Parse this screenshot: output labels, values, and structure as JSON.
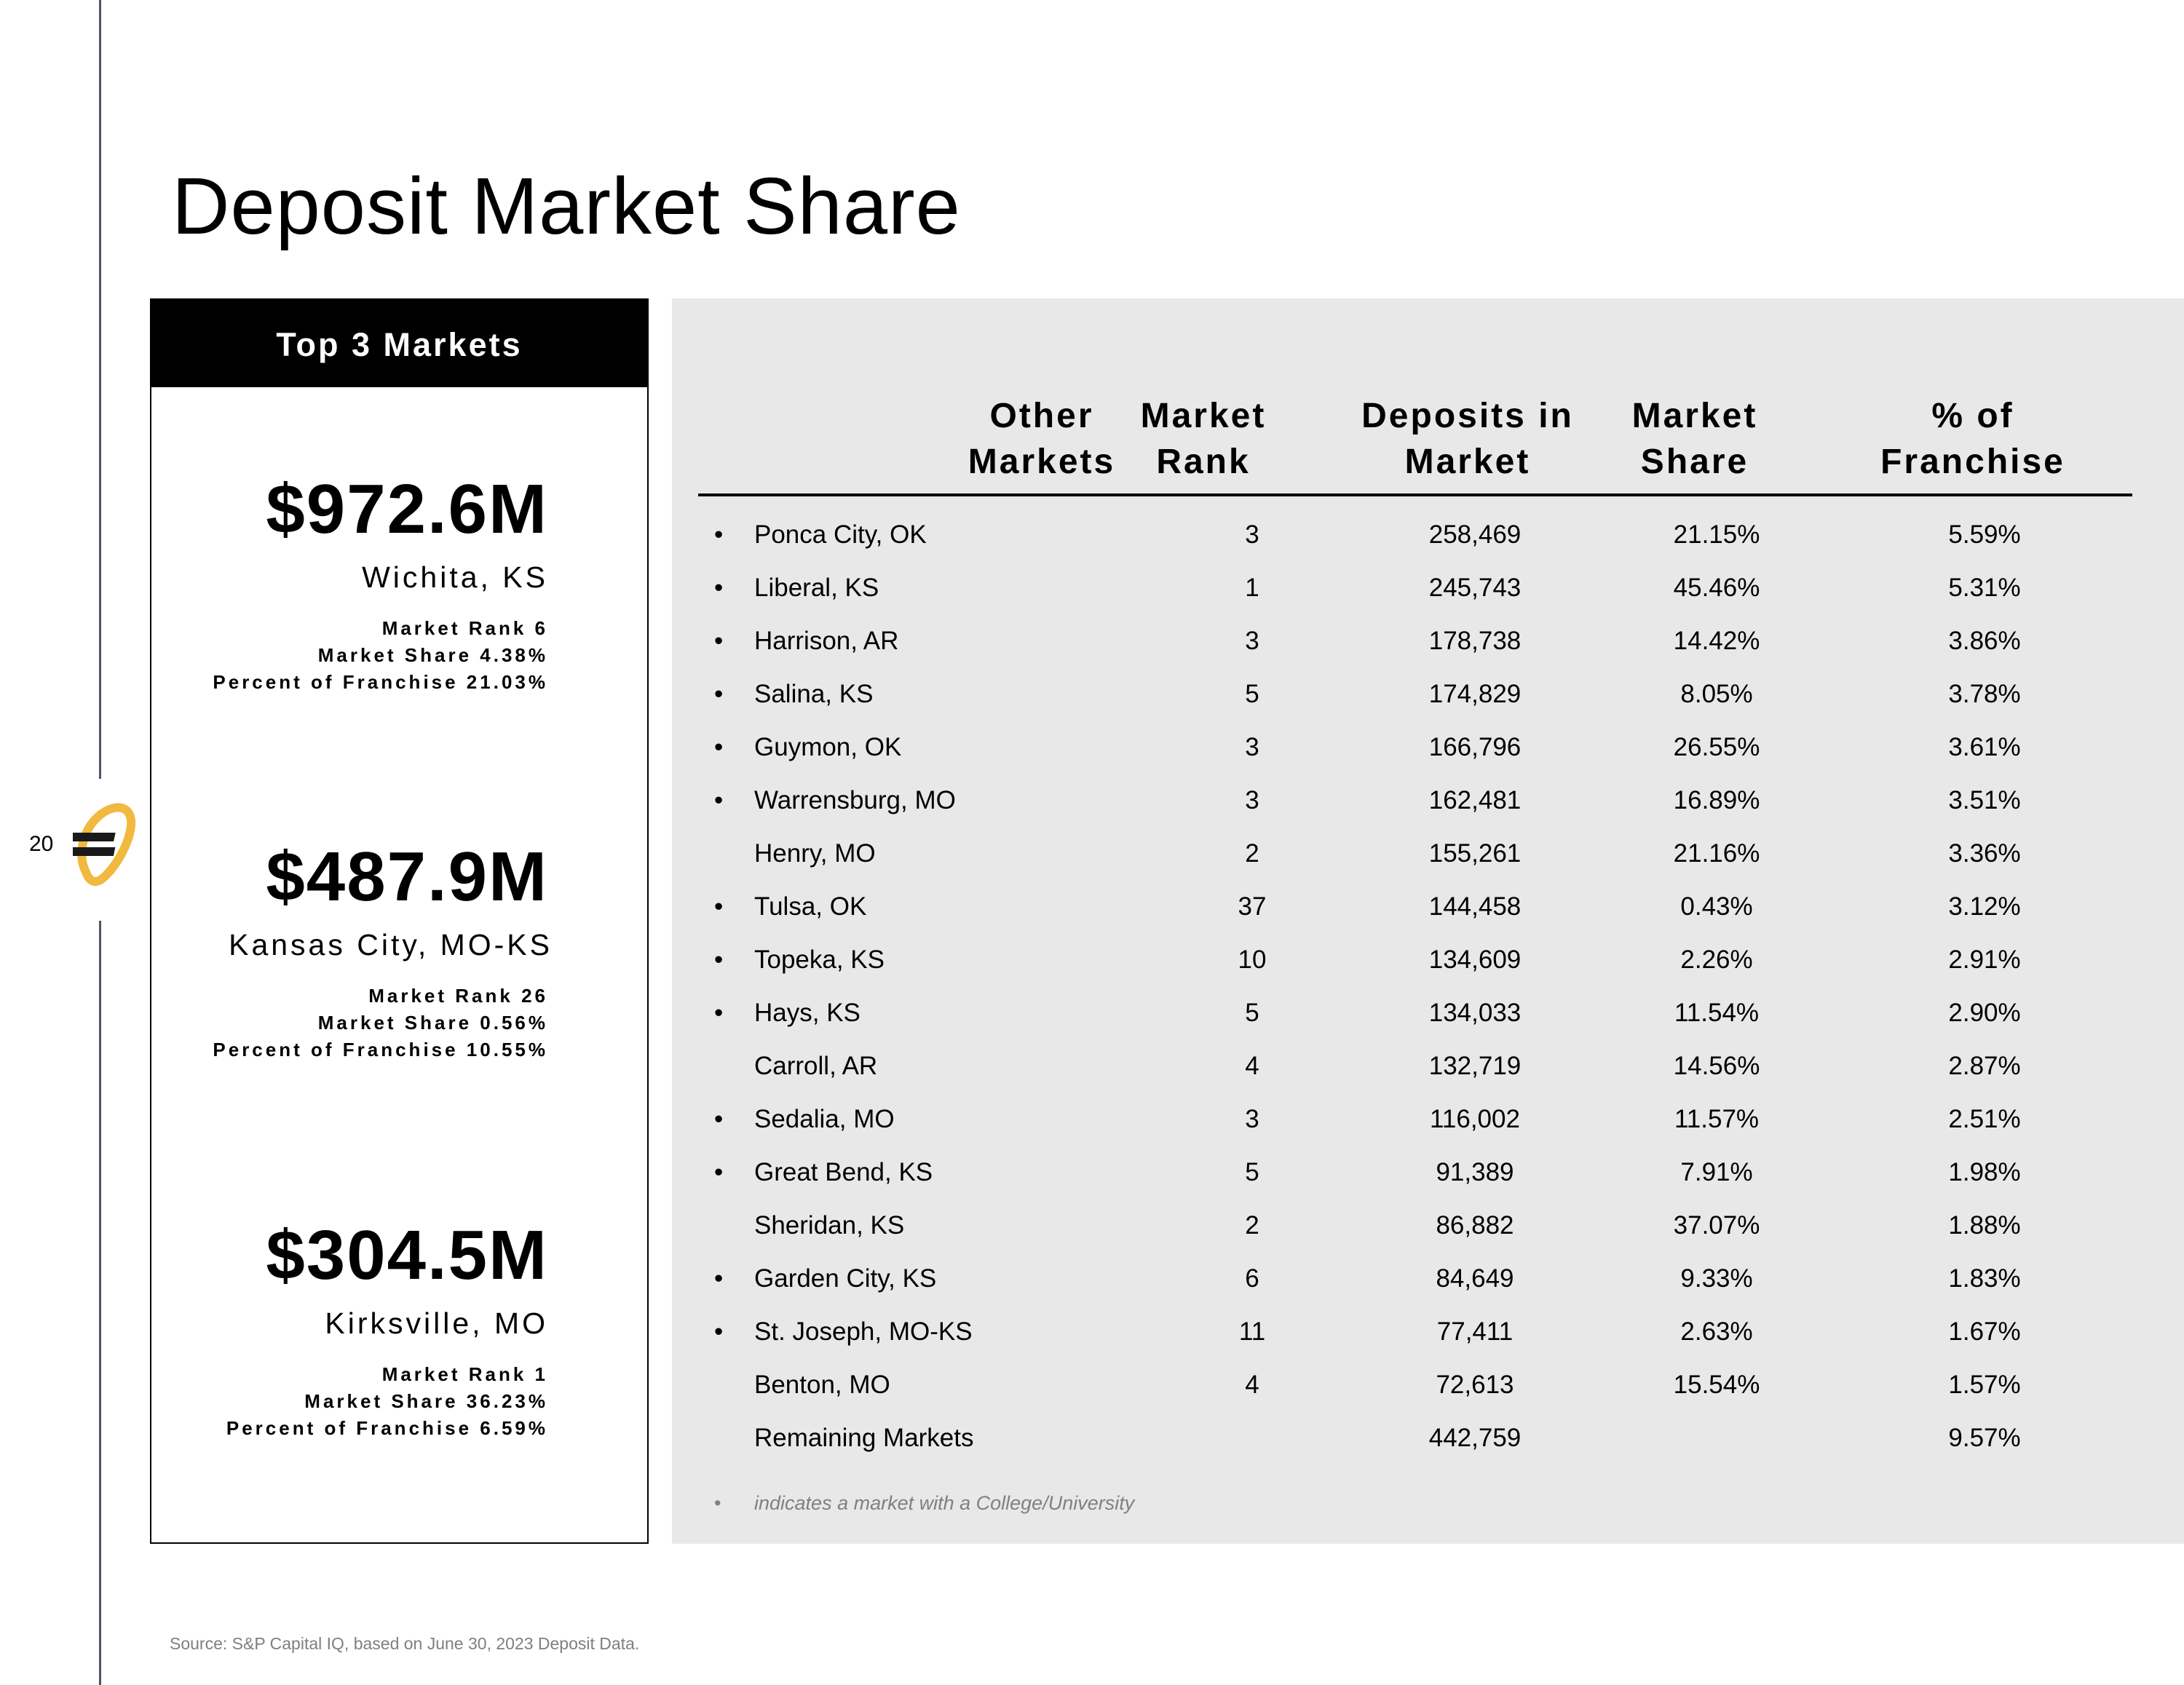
{
  "page": {
    "title": "Deposit Market Share",
    "number": "20",
    "source": "Source: S&P Capital IQ, based on June 30, 2023 Deposit Data."
  },
  "top_markets": {
    "header": "Top 3 Markets",
    "items": [
      {
        "amount": "$972.6M",
        "name": "Wichita, KS",
        "rank": "Market Rank 6",
        "share": "Market Share 4.38%",
        "franchise": "Percent of Franchise 21.03%"
      },
      {
        "amount": "$487.9M",
        "name": "Kansas City, MO-KS",
        "rank": "Market Rank 26",
        "share": "Market Share 0.56%",
        "franchise": "Percent of Franchise 10.55%"
      },
      {
        "amount": "$304.5M",
        "name": "Kirksville, MO",
        "rank": "Market Rank 1",
        "share": "Market Share 36.23%",
        "franchise": "Percent of Franchise 6.59%"
      }
    ]
  },
  "other_markets": {
    "columns": [
      {
        "line1": "Other",
        "line2": "Markets"
      },
      {
        "line1": "Market",
        "line2": "Rank"
      },
      {
        "line1": "Deposits in",
        "line2": "Market"
      },
      {
        "line1": "Market",
        "line2": "Share"
      },
      {
        "line1": "% of",
        "line2": "Franchise"
      }
    ],
    "rows": [
      {
        "bullet": "•",
        "market": "Ponca City, OK",
        "rank": "3",
        "deposits": "258,469",
        "share": "21.15%",
        "pct": "5.59%"
      },
      {
        "bullet": "•",
        "market": "Liberal, KS",
        "rank": "1",
        "deposits": "245,743",
        "share": "45.46%",
        "pct": "5.31%"
      },
      {
        "bullet": "•",
        "market": "Harrison, AR",
        "rank": "3",
        "deposits": "178,738",
        "share": "14.42%",
        "pct": "3.86%"
      },
      {
        "bullet": "•",
        "market": "Salina, KS",
        "rank": "5",
        "deposits": "174,829",
        "share": "8.05%",
        "pct": "3.78%"
      },
      {
        "bullet": "•",
        "market": "Guymon, OK",
        "rank": "3",
        "deposits": "166,796",
        "share": "26.55%",
        "pct": "3.61%"
      },
      {
        "bullet": "•",
        "market": "Warrensburg, MO",
        "rank": "3",
        "deposits": "162,481",
        "share": "16.89%",
        "pct": "3.51%"
      },
      {
        "bullet": "",
        "market": "Henry, MO",
        "rank": "2",
        "deposits": "155,261",
        "share": "21.16%",
        "pct": "3.36%"
      },
      {
        "bullet": "•",
        "market": "Tulsa, OK",
        "rank": "37",
        "deposits": "144,458",
        "share": "0.43%",
        "pct": "3.12%"
      },
      {
        "bullet": "•",
        "market": "Topeka, KS",
        "rank": "10",
        "deposits": "134,609",
        "share": "2.26%",
        "pct": "2.91%"
      },
      {
        "bullet": "•",
        "market": "Hays, KS",
        "rank": "5",
        "deposits": "134,033",
        "share": "11.54%",
        "pct": "2.90%"
      },
      {
        "bullet": "",
        "market": "Carroll, AR",
        "rank": "4",
        "deposits": "132,719",
        "share": "14.56%",
        "pct": "2.87%"
      },
      {
        "bullet": "•",
        "market": "Sedalia, MO",
        "rank": "3",
        "deposits": "116,002",
        "share": "11.57%",
        "pct": "2.51%"
      },
      {
        "bullet": "•",
        "market": "Great Bend, KS",
        "rank": "5",
        "deposits": "91,389",
        "share": "7.91%",
        "pct": "1.98%"
      },
      {
        "bullet": "",
        "market": "Sheridan, KS",
        "rank": "2",
        "deposits": "86,882",
        "share": "37.07%",
        "pct": "1.88%"
      },
      {
        "bullet": "•",
        "market": "Garden City, KS",
        "rank": "6",
        "deposits": "84,649",
        "share": "9.33%",
        "pct": "1.83%"
      },
      {
        "bullet": "•",
        "market": "St. Joseph, MO-KS",
        "rank": "11",
        "deposits": "77,411",
        "share": "2.63%",
        "pct": "1.67%"
      },
      {
        "bullet": "",
        "market": "Benton, MO",
        "rank": "4",
        "deposits": "72,613",
        "share": "15.54%",
        "pct": "1.57%"
      },
      {
        "bullet": "",
        "market": "Remaining Markets",
        "rank": "",
        "deposits": "442,759",
        "share": "",
        "pct": "9.57%"
      }
    ],
    "footnote": {
      "bullet": "•",
      "text": "indicates a market with a College/University"
    }
  },
  "colors": {
    "panel_bg": "#e8e8e8",
    "header_bg": "#000000",
    "logo_gold": "#f1b940",
    "margin_line": "#4f5268"
  },
  "icons": {
    "logo": "equity-bank-logo-icon"
  }
}
